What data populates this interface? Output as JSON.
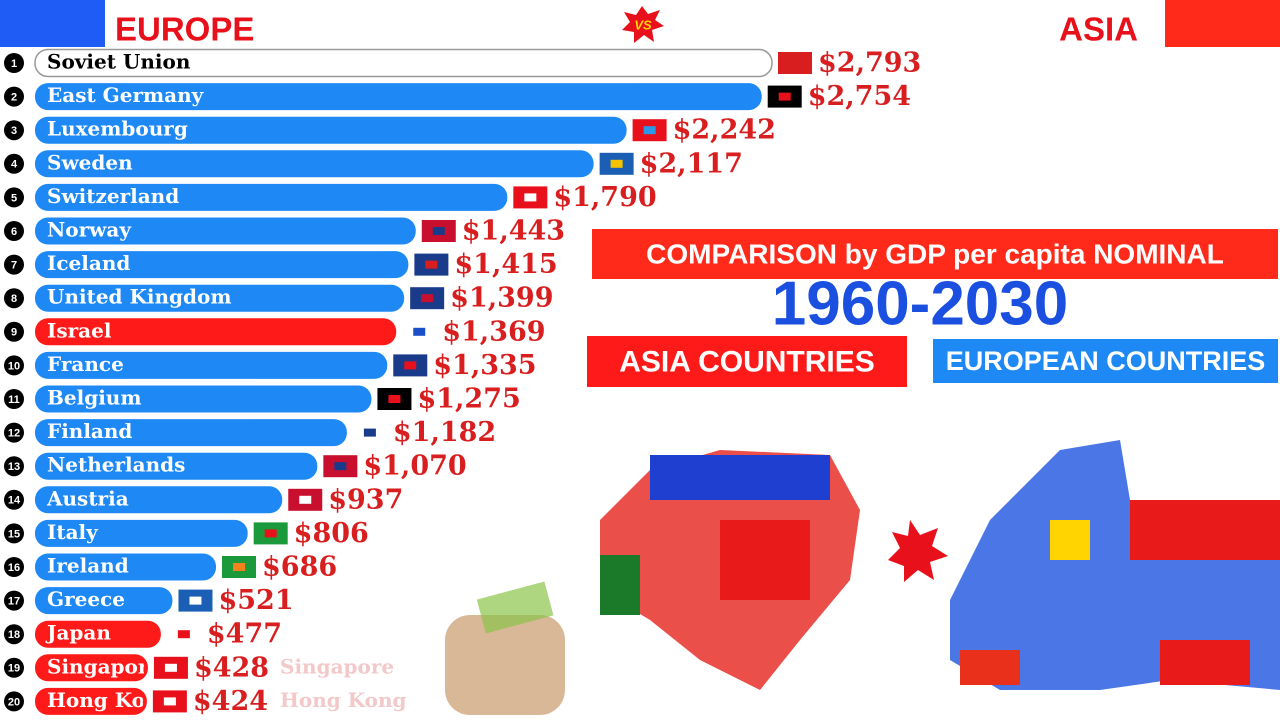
{
  "header": {
    "left": "EUROPE",
    "right": "ASIA",
    "vs": "VS"
  },
  "chart_data": {
    "type": "bar",
    "orientation": "horizontal",
    "title": "COMPARISON by GDP per capita NOMINAL",
    "subtitle": "1960-2030",
    "legend": [
      {
        "name": "ASIA COUNTRIES",
        "color": "#ff1a1a"
      },
      {
        "name": "EUROPEAN COUNTRIES",
        "color": "#1e88f5"
      }
    ],
    "ranks": [
      1,
      2,
      3,
      4,
      5,
      6,
      7,
      8,
      9,
      10,
      11,
      12,
      13,
      14,
      15,
      16,
      17,
      18,
      19,
      20
    ],
    "categories": [
      "Soviet Union",
      "East Germany",
      "Luxembourg",
      "Sweden",
      "Switzerland",
      "Norway",
      "Iceland",
      "United Kingdom",
      "Israel",
      "France",
      "Belgium",
      "Finland",
      "Netherlands",
      "Austria",
      "Italy",
      "Ireland",
      "Greece",
      "Japan",
      "Singapore",
      "Hong Kong"
    ],
    "values": [
      2793,
      2754,
      2242,
      2117,
      1790,
      1443,
      1415,
      1399,
      1369,
      1335,
      1275,
      1182,
      1070,
      937,
      806,
      686,
      521,
      477,
      428,
      424
    ],
    "value_labels": [
      "$2,793",
      "$2,754",
      "$2,242",
      "$2,117",
      "$1,790",
      "$1,443",
      "$1,415",
      "$1,399",
      "$1,369",
      "$1,335",
      "$1,275",
      "$1,182",
      "$1,070",
      "$937",
      "$806",
      "$686",
      "$521",
      "$477",
      "$428",
      "$424"
    ],
    "colors": [
      "#ffffff",
      "#1e88f5",
      "#1e88f5",
      "#1e88f5",
      "#1e88f5",
      "#1e88f5",
      "#1e88f5",
      "#1e88f5",
      "#ff1a1a",
      "#1e88f5",
      "#1e88f5",
      "#1e88f5",
      "#1e88f5",
      "#1e88f5",
      "#1e88f5",
      "#1e88f5",
      "#1e88f5",
      "#ff1a1a",
      "#ff1a1a",
      "#ff1a1a"
    ],
    "ghost_labels": [
      "Singapore",
      "Hong Kong"
    ]
  }
}
